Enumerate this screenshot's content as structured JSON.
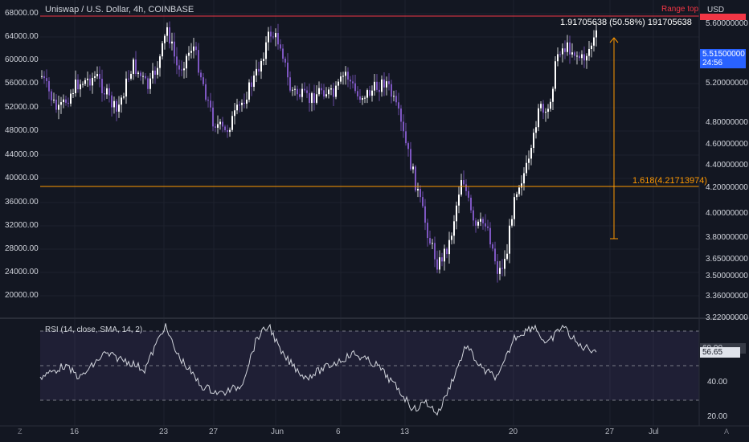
{
  "header": {
    "title": "Uniswap / U.S. Dollar, 4h, COINBASE",
    "currency": "USD"
  },
  "left_axis": [
    "68000.00",
    "64000.00",
    "60000.00",
    "56000.00",
    "52000.00",
    "48000.00",
    "44000.00",
    "40000.00",
    "36000.00",
    "32000.00",
    "28000.00",
    "24000.00",
    "20000.00"
  ],
  "right_axis": [
    "5.60000000",
    "5.20000000",
    "4.80000000",
    "4.60000000",
    "4.40000000",
    "4.20000000",
    "4.00000000",
    "3.80000000",
    "3.65000000",
    "3.50000000",
    "3.36000000",
    "3.22000000"
  ],
  "rsi_axis": [
    "40.00",
    "20.00"
  ],
  "x_labels": [
    "16",
    "23",
    "27",
    "Jun",
    "6",
    "13",
    "20",
    "27",
    "Jul"
  ],
  "price_badge": {
    "price": "5.51500000",
    "countdown": "24:56"
  },
  "range_top_label": "Range top",
  "measure_label": "1.91705638 (50.58%) 191705638",
  "fib_label": "1.618(4.21713974)",
  "rsi": {
    "title": "RSI (14, close, SMA, 14, 2)",
    "value": "56.65",
    "level_60": "60.00"
  },
  "corner": {
    "left": "Z",
    "right": "A"
  },
  "colors": {
    "bg": "#131722",
    "candle_up": "#ffffff",
    "candle_down": "#7e57c2",
    "fib": "#ff9800",
    "range_top": "#f23645",
    "badge": "#2962ff"
  }
}
